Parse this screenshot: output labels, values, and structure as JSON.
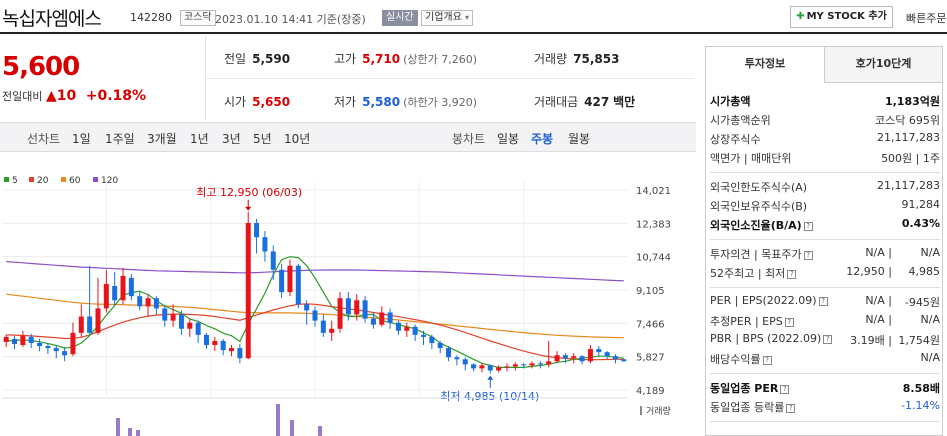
{
  "header": {
    "name": "녹십자엠에스",
    "code": "142280",
    "market": "코스닥",
    "timestamp": "2023.01.10 14:41 기준(장중)",
    "realtime": "실시간",
    "company_info": "기업개요",
    "mystock": "MY STOCK 추가",
    "quick_order": "빠른주문"
  },
  "price": {
    "current": "5,600",
    "change_label": "전일대비",
    "change": "10",
    "change_pct": "+0.18%"
  },
  "summary": {
    "prev_label": "전일",
    "prev": "5,590",
    "high_label": "고가",
    "high": "5,710",
    "upper_limit": "(상한가 7,260)",
    "volume_label": "거래량",
    "volume": "75,853",
    "open_label": "시가",
    "open": "5,650",
    "low_label": "저가",
    "low": "5,580",
    "lower_limit": "(하한가 3,920)",
    "amount_label": "거래대금",
    "amount": "427",
    "amount_unit": "백만"
  },
  "toolbar": {
    "line_label": "선차트",
    "periods": [
      "1일",
      "1주일",
      "3개월",
      "1년",
      "3년",
      "5년",
      "10년"
    ],
    "candle_label": "봉차트",
    "candles": [
      "일봉",
      "주봉",
      "월봉"
    ],
    "active_candle": "주봉"
  },
  "chart_data": {
    "type": "candlestick",
    "ma_legend": [
      {
        "name": "5",
        "color": "#2a9d2a"
      },
      {
        "name": "20",
        "color": "#e0432a"
      },
      {
        "name": "60",
        "color": "#e8891a"
      },
      {
        "name": "120",
        "color": "#8b4fc9"
      }
    ],
    "y_ticks": [
      "14,021",
      "12,383",
      "10,744",
      "9,105",
      "7,466",
      "5,827",
      "4,189"
    ],
    "ylim": [
      4189,
      14021
    ],
    "high_annotation": "최고 12,950 (06/03)",
    "low_annotation": "최저 4,985 (10/14)",
    "volume_label": "거래량",
    "candles": [
      [
        6550,
        6800,
        6300,
        6900
      ],
      [
        6700,
        6450,
        6200,
        6850
      ],
      [
        6400,
        6850,
        6300,
        7100
      ],
      [
        6800,
        6500,
        6250,
        6950
      ],
      [
        6500,
        6350,
        6100,
        6700
      ],
      [
        6350,
        6250,
        5950,
        6500
      ],
      [
        6250,
        6100,
        5750,
        6400
      ],
      [
        6100,
        5900,
        5600,
        6300
      ],
      [
        5950,
        7000,
        5850,
        7500
      ],
      [
        7000,
        7800,
        6800,
        8400
      ],
      [
        7800,
        7000,
        6900,
        10300
      ],
      [
        7000,
        8200,
        6900,
        9700
      ],
      [
        8200,
        9400,
        8000,
        10100
      ],
      [
        9300,
        8600,
        8300,
        10000
      ],
      [
        8600,
        9800,
        8400,
        10200
      ],
      [
        9700,
        8800,
        8600,
        9900
      ],
      [
        8800,
        8300,
        8100,
        9000
      ],
      [
        8300,
        8700,
        7800,
        8900
      ],
      [
        8700,
        8200,
        7900,
        8800
      ],
      [
        8200,
        7600,
        7300,
        8300
      ],
      [
        7600,
        7900,
        7300,
        8400
      ],
      [
        7900,
        7200,
        6900,
        8100
      ],
      [
        7200,
        7500,
        6800,
        7700
      ],
      [
        7500,
        6900,
        6500,
        7600
      ],
      [
        6900,
        6400,
        6200,
        7000
      ],
      [
        6400,
        6600,
        6100,
        6800
      ],
      [
        6600,
        6150,
        5900,
        6700
      ],
      [
        6100,
        6250,
        5850,
        6400
      ],
      [
        6250,
        5750,
        5500,
        6450
      ],
      [
        5750,
        12400,
        5700,
        12950
      ],
      [
        12400,
        11700,
        10900,
        12600
      ],
      [
        11700,
        11000,
        10500,
        12000
      ],
      [
        11000,
        10100,
        9600,
        11300
      ],
      [
        10100,
        9000,
        8700,
        10400
      ],
      [
        9000,
        10300,
        8800,
        10600
      ],
      [
        10300,
        8400,
        8200,
        10400
      ],
      [
        8400,
        8100,
        7400,
        8600
      ],
      [
        8100,
        7600,
        7300,
        8300
      ],
      [
        7600,
        7000,
        6800,
        7900
      ],
      [
        7000,
        7200,
        6600,
        7600
      ],
      [
        7200,
        8700,
        7000,
        9000
      ],
      [
        8700,
        7900,
        7600,
        9000
      ],
      [
        7900,
        8600,
        7600,
        8900
      ],
      [
        8600,
        7700,
        7500,
        8800
      ],
      [
        7700,
        7400,
        7200,
        8000
      ],
      [
        7400,
        8000,
        7300,
        8300
      ],
      [
        8000,
        7500,
        7200,
        8200
      ],
      [
        7500,
        7100,
        6900,
        7600
      ],
      [
        7100,
        7300,
        6800,
        7500
      ],
      [
        7300,
        6900,
        6600,
        7400
      ],
      [
        6900,
        6800,
        6400,
        7100
      ],
      [
        6800,
        6500,
        6200,
        6900
      ],
      [
        6500,
        6250,
        6000,
        6600
      ],
      [
        6250,
        5800,
        5600,
        6350
      ],
      [
        5800,
        5700,
        5400,
        5900
      ],
      [
        5700,
        5450,
        5150,
        5800
      ],
      [
        5450,
        5250,
        5100,
        5500
      ],
      [
        5250,
        5400,
        5050,
        5500
      ],
      [
        5400,
        5150,
        4985,
        5450
      ],
      [
        5150,
        5300,
        5050,
        5400
      ],
      [
        5300,
        5350,
        5100,
        5500
      ],
      [
        5350,
        5450,
        5150,
        5550
      ],
      [
        5450,
        5400,
        5250,
        5500
      ],
      [
        5400,
        5500,
        5250,
        5600
      ],
      [
        5500,
        5450,
        5250,
        5600
      ],
      [
        5450,
        5600,
        5300,
        6600
      ],
      [
        5600,
        5900,
        5500,
        6100
      ],
      [
        5900,
        5750,
        5500,
        6000
      ],
      [
        5750,
        5850,
        5500,
        6000
      ],
      [
        5850,
        5600,
        5450,
        5900
      ],
      [
        5600,
        6200,
        5500,
        6400
      ],
      [
        6200,
        6050,
        5800,
        6350
      ],
      [
        6050,
        5850,
        5700,
        6100
      ],
      [
        5850,
        5700,
        5500,
        5950
      ],
      [
        5700,
        5600,
        5580,
        5710
      ]
    ],
    "ma5": [
      6600,
      6620,
      6650,
      6620,
      6560,
      6470,
      6380,
      6250,
      6300,
      6500,
      6860,
      7340,
      7860,
      8350,
      8850,
      8980,
      9040,
      8880,
      8580,
      8320,
      8140,
      7960,
      7680,
      7560,
      7360,
      7200,
      6980,
      6860,
      6580,
      7430,
      8190,
      8950,
      9850,
      10600,
      10740,
      10700,
      10300,
      9700,
      9000,
      8300,
      8000,
      7800,
      7800,
      7900,
      7900,
      7600,
      7500,
      7400,
      7300,
      7200,
      7000,
      6800,
      6500,
      6300,
      6100,
      5900,
      5700,
      5500,
      5400,
      5300,
      5300,
      5300,
      5300,
      5350,
      5400,
      5450,
      5550,
      5600,
      5700,
      5750,
      5800,
      5850,
      5850,
      5800,
      5750
    ],
    "ma20": [
      6900,
      6890,
      6870,
      6850,
      6820,
      6790,
      6760,
      6720,
      6730,
      6780,
      6900,
      7050,
      7220,
      7380,
      7520,
      7640,
      7740,
      7820,
      7870,
      7900,
      7920,
      7920,
      7900,
      7880,
      7850,
      7800,
      7740,
      7680,
      7620,
      7750,
      7880,
      8000,
      8120,
      8230,
      8330,
      8400,
      8420,
      8400,
      8350,
      8290,
      8230,
      8180,
      8130,
      8070,
      8000,
      7930,
      7860,
      7790,
      7720,
      7650,
      7570,
      7480,
      7380,
      7270,
      7150,
      7020,
      6880,
      6740,
      6600,
      6470,
      6340,
      6220,
      6100,
      6000,
      5900,
      5830,
      5780,
      5740,
      5710,
      5690,
      5680,
      5680,
      5690,
      5700,
      5700
    ],
    "ma60": [
      8900,
      8850,
      8800,
      8750,
      8700,
      8650,
      8600,
      8550,
      8500,
      8460,
      8430,
      8410,
      8400,
      8390,
      8380,
      8370,
      8360,
      8350,
      8340,
      8320,
      8300,
      8280,
      8250,
      8220,
      8180,
      8140,
      8100,
      8060,
      8020,
      8000,
      7990,
      7980,
      7980,
      7980,
      7980,
      7970,
      7960,
      7940,
      7920,
      7890,
      7860,
      7830,
      7800,
      7770,
      7740,
      7700,
      7670,
      7630,
      7590,
      7550,
      7510,
      7470,
      7430,
      7390,
      7340,
      7300,
      7260,
      7210,
      7170,
      7130,
      7090,
      7050,
      7010,
      6970,
      6940,
      6910,
      6880,
      6860,
      6840,
      6820,
      6800,
      6790,
      6780,
      6770,
      6760
    ],
    "ma120": [
      10500,
      10470,
      10440,
      10410,
      10380,
      10350,
      10320,
      10290,
      10260,
      10230,
      10210,
      10190,
      10170,
      10150,
      10130,
      10110,
      10090,
      10070,
      10050,
      10040,
      10030,
      10020,
      10010,
      10000,
      9990,
      9980,
      9970,
      9960,
      9950,
      9950,
      9960,
      9980,
      10000,
      10020,
      10040,
      10060,
      10070,
      10080,
      10090,
      10090,
      10090,
      10090,
      10090,
      10080,
      10070,
      10060,
      10050,
      10040,
      10030,
      10020,
      10010,
      10000,
      9990,
      9970,
      9950,
      9930,
      9910,
      9890,
      9870,
      9850,
      9830,
      9810,
      9790,
      9770,
      9750,
      9730,
      9710,
      9690,
      9670,
      9650,
      9630,
      9610,
      9590,
      9570,
      9550
    ],
    "volumes": [
      3,
      0,
      0,
      0,
      0,
      0,
      0,
      0,
      0,
      0,
      0,
      0,
      0,
      0,
      0,
      0,
      0,
      0,
      0,
      0,
      0,
      0,
      0,
      0,
      0,
      0,
      0,
      0,
      0,
      0,
      0,
      0,
      0,
      0,
      0,
      0,
      0,
      0,
      0,
      0,
      0,
      0,
      0,
      0,
      0,
      0,
      0,
      0,
      0,
      0,
      0,
      0,
      0,
      0,
      0,
      0,
      0,
      0,
      0,
      0,
      0,
      0,
      0,
      0,
      0,
      0,
      0,
      0,
      0,
      0,
      0,
      0,
      0,
      0,
      0
    ]
  },
  "side": {
    "tab_invest": "투자정보",
    "tab_quote": "호가10단계",
    "rows1": [
      {
        "k": "시가총액",
        "v": "1,183억원",
        "bold": true
      },
      {
        "k": "시가총액순위",
        "v": "코스닥 695위"
      },
      {
        "k": "상장주식수",
        "v": "21,117,283"
      },
      {
        "k": "액면가 | 매매단위",
        "v": "500원 | 1주"
      }
    ],
    "rows2": [
      {
        "k": "외국인한도주식수(A)",
        "v": "21,117,283"
      },
      {
        "k": "외국인보유주식수(B)",
        "v": "91,284"
      },
      {
        "k": "외국인소진율(B/A)",
        "v": "0.43%",
        "bold": true
      }
    ],
    "rows3": [
      {
        "k": "투자의견 | 목표주가",
        "v1": "N/A",
        "v": "N/A"
      },
      {
        "k": "52주최고 | 최저",
        "v1": "12,950",
        "v": "4,985"
      }
    ],
    "rows4": [
      {
        "k": "PER | EPS(2022.09)",
        "v1": "N/A",
        "v": "-945원"
      },
      {
        "k": "추정PER | EPS",
        "v1": "N/A",
        "v": "N/A"
      },
      {
        "k": "PBR | BPS (2022.09)",
        "v1": "3.19배",
        "v": "1,754원"
      },
      {
        "k": "배당수익률",
        "v": "N/A"
      }
    ],
    "rows5": [
      {
        "k": "동일업종 PER",
        "v": "8.58배",
        "bold": true
      },
      {
        "k": "동일업종 등락률",
        "v": "-1.14%",
        "neg": true
      }
    ]
  }
}
